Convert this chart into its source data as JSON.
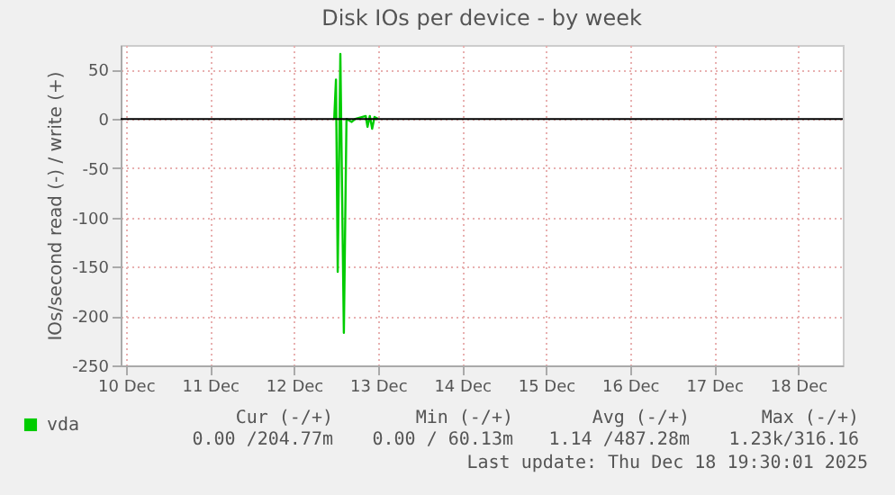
{
  "chart_data": {
    "type": "line",
    "title": "Disk IOs per device - by week",
    "ylabel": "IOs/second read (-) / write (+)",
    "x": [
      "2025-12-12T11:30",
      "2025-12-12T12:00",
      "2025-12-12T12:30",
      "2025-12-12T13:15",
      "2025-12-12T14:15",
      "2025-12-12T15:00",
      "2025-12-12T16:30",
      "2025-12-12T17:30",
      "2025-12-12T20:30",
      "2025-12-12T21:00",
      "2025-12-12T21:40",
      "2025-12-12T22:20",
      "2025-12-12T23:00",
      "2025-12-13T00:00"
    ],
    "series": [
      {
        "name": "vda",
        "color": "#00cc00",
        "values": [
          0,
          40,
          -155,
          66,
          -217,
          0,
          -3,
          0,
          3,
          -8,
          3,
          -10,
          2,
          0
        ]
      }
    ],
    "xlim": [
      "2025-12-09T22:30",
      "2025-12-18T12:45"
    ],
    "xticks": [
      {
        "value": "2025-12-10",
        "label": "10 Dec"
      },
      {
        "value": "2025-12-11",
        "label": "11 Dec"
      },
      {
        "value": "2025-12-12",
        "label": "12 Dec"
      },
      {
        "value": "2025-12-13",
        "label": "13 Dec"
      },
      {
        "value": "2025-12-14",
        "label": "14 Dec"
      },
      {
        "value": "2025-12-15",
        "label": "15 Dec"
      },
      {
        "value": "2025-12-16",
        "label": "16 Dec"
      },
      {
        "value": "2025-12-17",
        "label": "17 Dec"
      },
      {
        "value": "2025-12-18",
        "label": "18 Dec"
      }
    ],
    "ylim": [
      -250,
      75
    ],
    "yticks": [
      -250,
      -200,
      -150,
      -100,
      -50,
      0,
      50
    ],
    "ref_lines": [
      {
        "axis": "y",
        "value": 0,
        "color": "#000000"
      }
    ],
    "grid": true,
    "legend": "bottom left",
    "annotations": [
      "Cur (-/+)",
      "Min (-/+)",
      "Avg (-/+)",
      "Max (-/+)",
      "0.00 /204.77m",
      "0.00 / 60.13m",
      "1.14 /487.28m",
      "1.23k/316.16",
      "Last update: Thu Dec 18 19:30:01 2025"
    ]
  }
}
